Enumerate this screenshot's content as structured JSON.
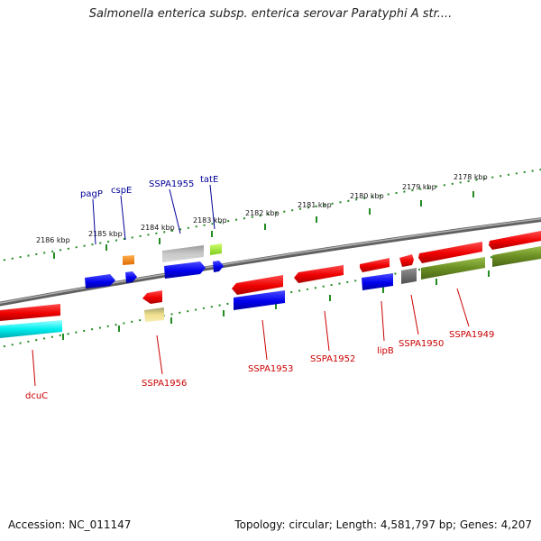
{
  "title": "Salmonella enterica subsp. enterica serovar Paratyphi A str....",
  "footer": {
    "accession": "Accession: NC_011147",
    "summary": "Topology: circular; Length: 4,581,797 bp; Genes: 4,207"
  },
  "colors": {
    "forward": "#ff0000",
    "reverse": "#0000ff",
    "backbone": "#808080",
    "ticks": "#228b22",
    "label_upper": "#000099",
    "label_lower": "#cc0000"
  },
  "kbp_labels": [
    "2186 kbp",
    "2185 kbp",
    "2184 kbp",
    "2183 kbp",
    "2182 kbp",
    "2181 kbp",
    "2180 kbp",
    "2179 kbp",
    "2178 kbp"
  ],
  "gene_labels_upper": [
    "pagP",
    "cspE",
    "SSPA1955",
    "tatE"
  ],
  "gene_labels_lower": [
    "dcuC",
    "SSPA1956",
    "SSPA1953",
    "SSPA1952",
    "lipB",
    "SSPA1950",
    "SSPA1949"
  ]
}
